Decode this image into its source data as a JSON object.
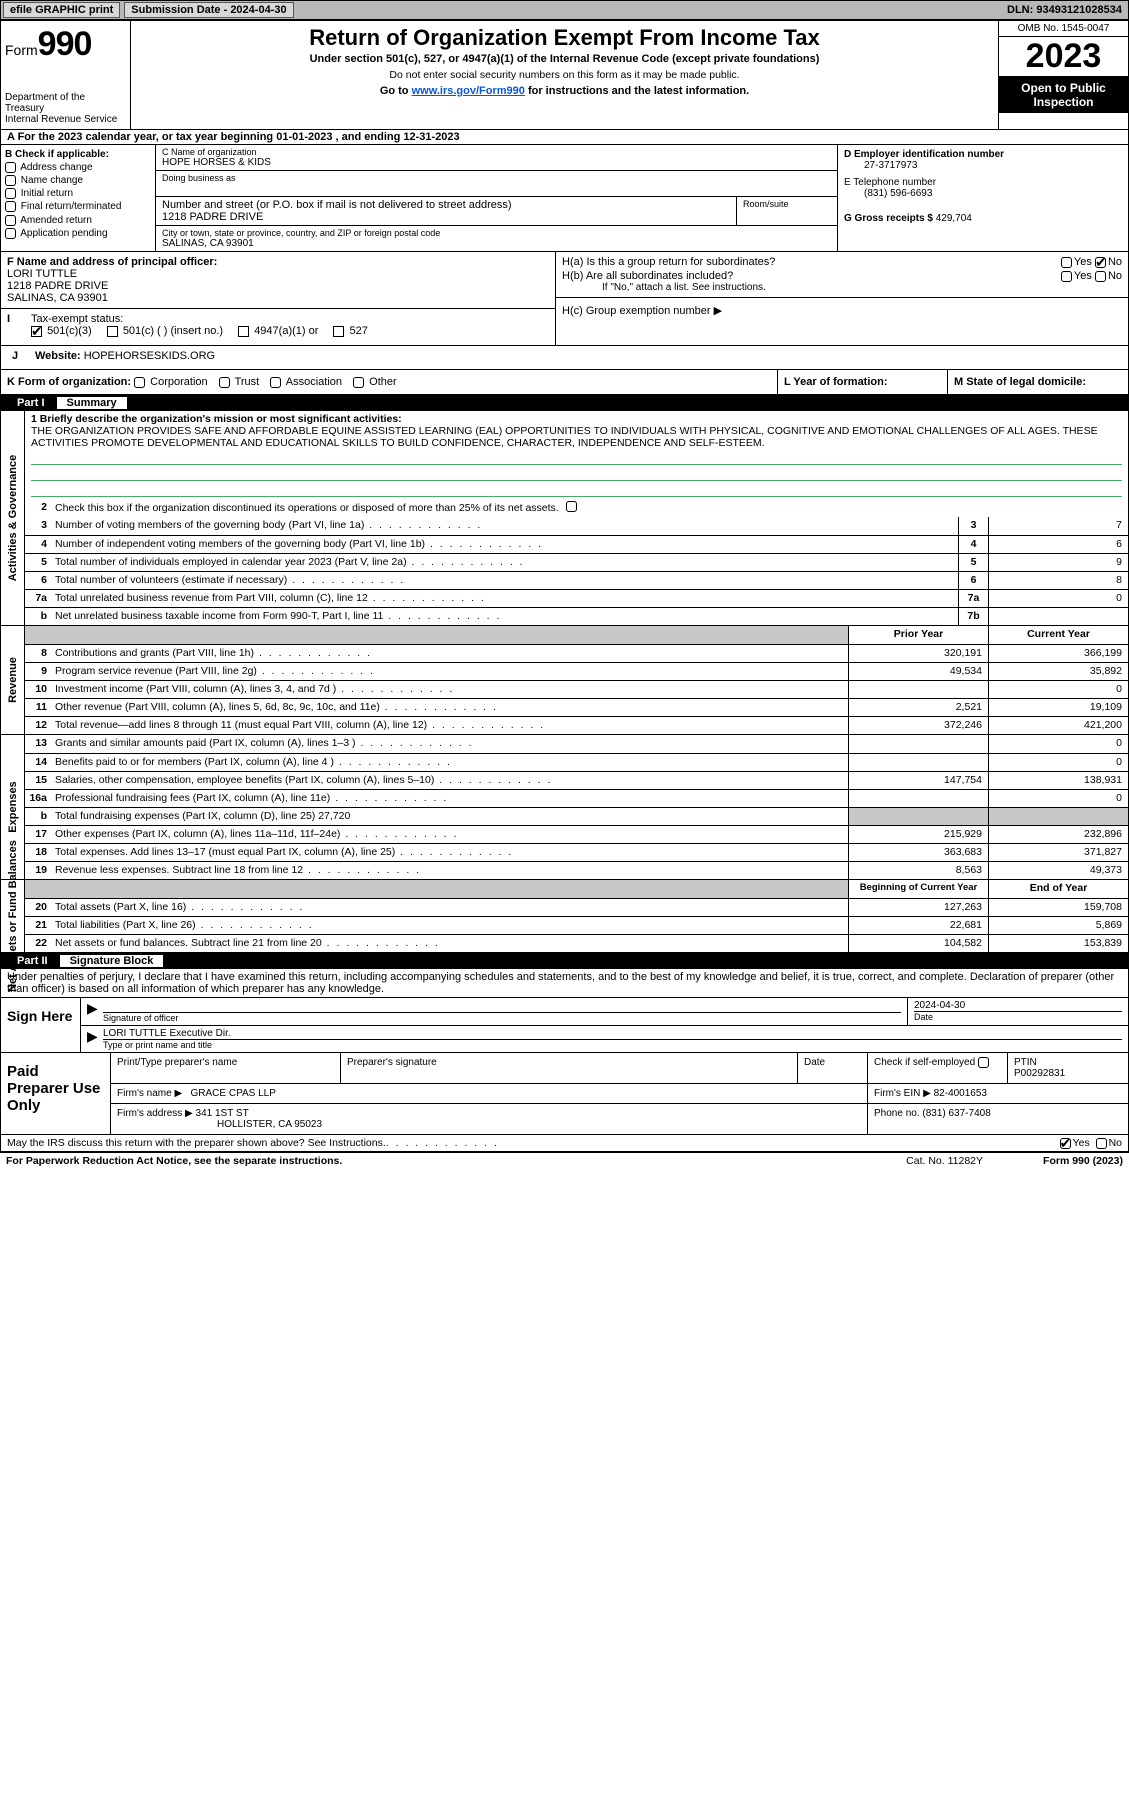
{
  "topbar": {
    "efile": "efile GRAPHIC print",
    "submission": "Submission Date - 2024-04-30",
    "dln": "DLN: 93493121028534"
  },
  "header": {
    "form_label": "Form",
    "form_number": "990",
    "dept": "Department of the Treasury\nInternal Revenue Service",
    "title": "Return of Organization Exempt From Income Tax",
    "sub": "Under section 501(c), 527, or 4947(a)(1) of the Internal Revenue Code (except private foundations)",
    "sub2": "Do not enter social security numbers on this form as it may be made public.",
    "goto_pre": "Go to ",
    "goto_link": "www.irs.gov/Form990",
    "goto_post": " for instructions and the latest information.",
    "omb": "OMB No. 1545-0047",
    "year": "2023",
    "open_pub": "Open to Public Inspection"
  },
  "period": {
    "label_a": "A For the 2023 calendar year, or tax year beginning ",
    "begin": "01-01-2023",
    "mid": " , and ending ",
    "end": "12-31-2023"
  },
  "boxB": {
    "title": "B Check if applicable:",
    "opts": [
      "Address change",
      "Name change",
      "Initial return",
      "Final return/terminated",
      "Amended return",
      "Application pending"
    ]
  },
  "boxC": {
    "name_lbl": "C Name of organization",
    "name": "HOPE HORSES & KIDS",
    "dba_lbl": "Doing business as",
    "addr_lbl": "Number and street (or P.O. box if mail is not delivered to street address)",
    "room_lbl": "Room/suite",
    "addr": "1218 PADRE DRIVE",
    "city_lbl": "City or town, state or province, country, and ZIP or foreign postal code",
    "city": "SALINAS, CA  93901"
  },
  "boxD": {
    "ein_lbl": "D Employer identification number",
    "ein": "27-3717973",
    "tel_lbl": "E Telephone number",
    "tel": "(831) 596-6693",
    "gross_lbl": "G Gross receipts $",
    "gross": "429,704"
  },
  "boxF": {
    "lbl": "F Name and address of principal officer:",
    "name": "LORI TUTTLE",
    "addr1": "1218 PADRE DRIVE",
    "addr2": "SALINAS, CA  93901"
  },
  "boxH": {
    "ha": "H(a)  Is this a group return for subordinates?",
    "hb": "H(b)  Are all subordinates included?",
    "hb_note": "If \"No,\" attach a list. See instructions.",
    "hc": "H(c)  Group exemption number ",
    "yes": "Yes",
    "no": "No"
  },
  "boxI": {
    "lbl": "Tax-exempt status:",
    "o1": "501(c)(3)",
    "o2": "501(c) (  ) (insert no.)",
    "o3": "4947(a)(1) or",
    "o4": "527"
  },
  "boxJ": {
    "lbl": "Website: ",
    "val": "HOPEHORSESKIDS.ORG"
  },
  "boxK": {
    "lbl": "K Form of organization:",
    "opts": [
      "Corporation",
      "Trust",
      "Association",
      "Other"
    ],
    "l_lbl": "L Year of formation:",
    "m_lbl": "M State of legal domicile:"
  },
  "part1": {
    "hdr_num": "Part I",
    "hdr_title": "Summary",
    "vtabs": [
      "Activities & Governance",
      "Revenue",
      "Expenses",
      "Net Assets or Fund Balances"
    ],
    "mission_lbl": "1   Briefly describe the organization's mission or most significant activities:",
    "mission": "THE ORGANIZATION PROVIDES SAFE AND AFFORDABLE EQUINE ASSISTED LEARNING (EAL) OPPORTUNITIES TO INDIVIDUALS WITH PHYSICAL, COGNITIVE AND EMOTIONAL CHALLENGES OF ALL AGES. THESE ACTIVITIES PROMOTE DEVELOPMENTAL AND EDUCATIONAL SKILLS TO BUILD CONFIDENCE, CHARACTER, INDEPENDENCE AND SELF-ESTEEM.",
    "line2": "Check this box       if the organization discontinued its operations or disposed of more than 25% of its net assets.",
    "rows_gov": [
      {
        "n": "3",
        "d": "Number of voting members of the governing body (Part VI, line 1a)",
        "bn": "3",
        "bv": "7"
      },
      {
        "n": "4",
        "d": "Number of independent voting members of the governing body (Part VI, line 1b)",
        "bn": "4",
        "bv": "6"
      },
      {
        "n": "5",
        "d": "Total number of individuals employed in calendar year 2023 (Part V, line 2a)",
        "bn": "5",
        "bv": "9"
      },
      {
        "n": "6",
        "d": "Total number of volunteers (estimate if necessary)",
        "bn": "6",
        "bv": "8"
      },
      {
        "n": "7a",
        "d": "Total unrelated business revenue from Part VIII, column (C), line 12",
        "bn": "7a",
        "bv": "0"
      },
      {
        "n": "b",
        "d": "Net unrelated business taxable income from Form 990-T, Part I, line 11",
        "bn": "7b",
        "bv": ""
      }
    ],
    "col_hdrs": {
      "py": "Prior Year",
      "cy": "Current Year"
    },
    "rows_rev": [
      {
        "n": "8",
        "d": "Contributions and grants (Part VIII, line 1h)",
        "py": "320,191",
        "cy": "366,199"
      },
      {
        "n": "9",
        "d": "Program service revenue (Part VIII, line 2g)",
        "py": "49,534",
        "cy": "35,892"
      },
      {
        "n": "10",
        "d": "Investment income (Part VIII, column (A), lines 3, 4, and 7d )",
        "py": "",
        "cy": "0"
      },
      {
        "n": "11",
        "d": "Other revenue (Part VIII, column (A), lines 5, 6d, 8c, 9c, 10c, and 11e)",
        "py": "2,521",
        "cy": "19,109"
      },
      {
        "n": "12",
        "d": "Total revenue—add lines 8 through 11 (must equal Part VIII, column (A), line 12)",
        "py": "372,246",
        "cy": "421,200"
      }
    ],
    "rows_exp": [
      {
        "n": "13",
        "d": "Grants and similar amounts paid (Part IX, column (A), lines 1–3 )",
        "py": "",
        "cy": "0"
      },
      {
        "n": "14",
        "d": "Benefits paid to or for members (Part IX, column (A), line 4 )",
        "py": "",
        "cy": "0"
      },
      {
        "n": "15",
        "d": "Salaries, other compensation, employee benefits (Part IX, column (A), lines 5–10)",
        "py": "147,754",
        "cy": "138,931"
      },
      {
        "n": "16a",
        "d": "Professional fundraising fees (Part IX, column (A), line 11e)",
        "py": "",
        "cy": "0"
      },
      {
        "n": "b",
        "d": "Total fundraising expenses (Part IX, column (D), line 25) 27,720",
        "py": "shade",
        "cy": "shade"
      },
      {
        "n": "17",
        "d": "Other expenses (Part IX, column (A), lines 11a–11d, 11f–24e)",
        "py": "215,929",
        "cy": "232,896"
      },
      {
        "n": "18",
        "d": "Total expenses. Add lines 13–17 (must equal Part IX, column (A), line 25)",
        "py": "363,683",
        "cy": "371,827"
      },
      {
        "n": "19",
        "d": "Revenue less expenses. Subtract line 18 from line 12",
        "py": "8,563",
        "cy": "49,373"
      }
    ],
    "col_hdrs2": {
      "py": "Beginning of Current Year",
      "cy": "End of Year"
    },
    "rows_net": [
      {
        "n": "20",
        "d": "Total assets (Part X, line 16)",
        "py": "127,263",
        "cy": "159,708"
      },
      {
        "n": "21",
        "d": "Total liabilities (Part X, line 26)",
        "py": "22,681",
        "cy": "5,869"
      },
      {
        "n": "22",
        "d": "Net assets or fund balances. Subtract line 21 from line 20",
        "py": "104,582",
        "cy": "153,839"
      }
    ]
  },
  "part2": {
    "hdr_num": "Part II",
    "hdr_title": "Signature Block",
    "perjury": "Under penalties of perjury, I declare that I have examined this return, including accompanying schedules and statements, and to the best of my knowledge and belief, it is true, correct, and complete. Declaration of preparer (other than officer) is based on all information of which preparer has any knowledge.",
    "sign_here": "Sign Here",
    "sig_officer_lbl": "Signature of officer",
    "sig_name": "LORI TUTTLE  Executive Dir.",
    "sig_type_lbl": "Type or print name and title",
    "date_lbl": "Date",
    "date_val": "2024-04-30",
    "paid": "Paid Preparer Use Only",
    "prep_name_lbl": "Print/Type preparer's name",
    "prep_sig_lbl": "Preparer's signature",
    "check_self": "Check         if self-employed",
    "ptin_lbl": "PTIN",
    "ptin": "P00292831",
    "firm_name_lbl": "Firm's name  ",
    "firm_name": "GRACE CPAS LLP",
    "firm_ein_lbl": "Firm's EIN ",
    "firm_ein": "82-4001653",
    "firm_addr_lbl": "Firm's address ",
    "firm_addr1": "341 1ST ST",
    "firm_addr2": "HOLLISTER, CA  95023",
    "phone_lbl": "Phone no. ",
    "phone": "(831) 637-7408",
    "discuss": "May the IRS discuss this return with the preparer shown above? See Instructions.",
    "yes": "Yes",
    "no": "No"
  },
  "footer": {
    "pra": "For Paperwork Reduction Act Notice, see the separate instructions.",
    "cat": "Cat. No. 11282Y",
    "form": "Form 990 (2023)"
  }
}
